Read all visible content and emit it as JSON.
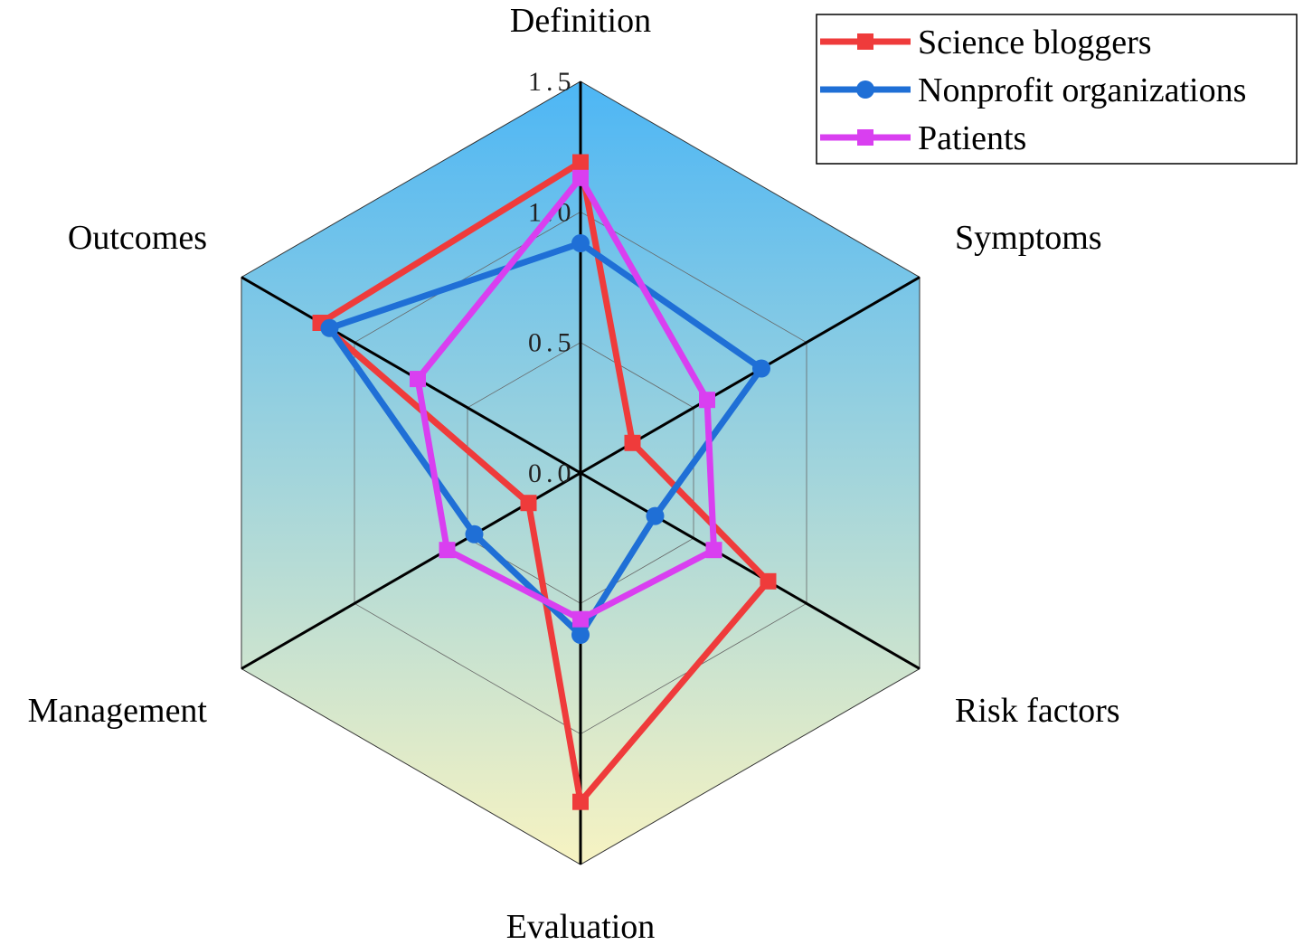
{
  "chart_data": {
    "type": "radar",
    "axes": [
      "Definition",
      "Symptoms",
      "Risk factors",
      "Evaluation",
      "Management",
      "Outcomes"
    ],
    "rlim": [
      0,
      1.5
    ],
    "ticks": [
      "0.0",
      "0.5",
      "1.0",
      "1.5"
    ],
    "tick_values": [
      0,
      0.5,
      1.0,
      1.5
    ],
    "grid": true,
    "legend_position": "top-right",
    "background_gradient": [
      "#4db6f5",
      "#f7f3c2"
    ],
    "series": [
      {
        "name": "Science bloggers",
        "color": "#ef3b3b",
        "marker": "square",
        "values": [
          1.19,
          0.23,
          0.83,
          1.26,
          0.23,
          1.15
        ]
      },
      {
        "name": "Nonprofit organizations",
        "color": "#1f6fd6",
        "marker": "circle",
        "values": [
          0.88,
          0.8,
          0.33,
          0.62,
          0.47,
          1.11
        ]
      },
      {
        "name": "Patients",
        "color": "#d93ff0",
        "marker": "square",
        "values": [
          1.13,
          0.56,
          0.59,
          0.56,
          0.59,
          0.72
        ]
      }
    ]
  }
}
